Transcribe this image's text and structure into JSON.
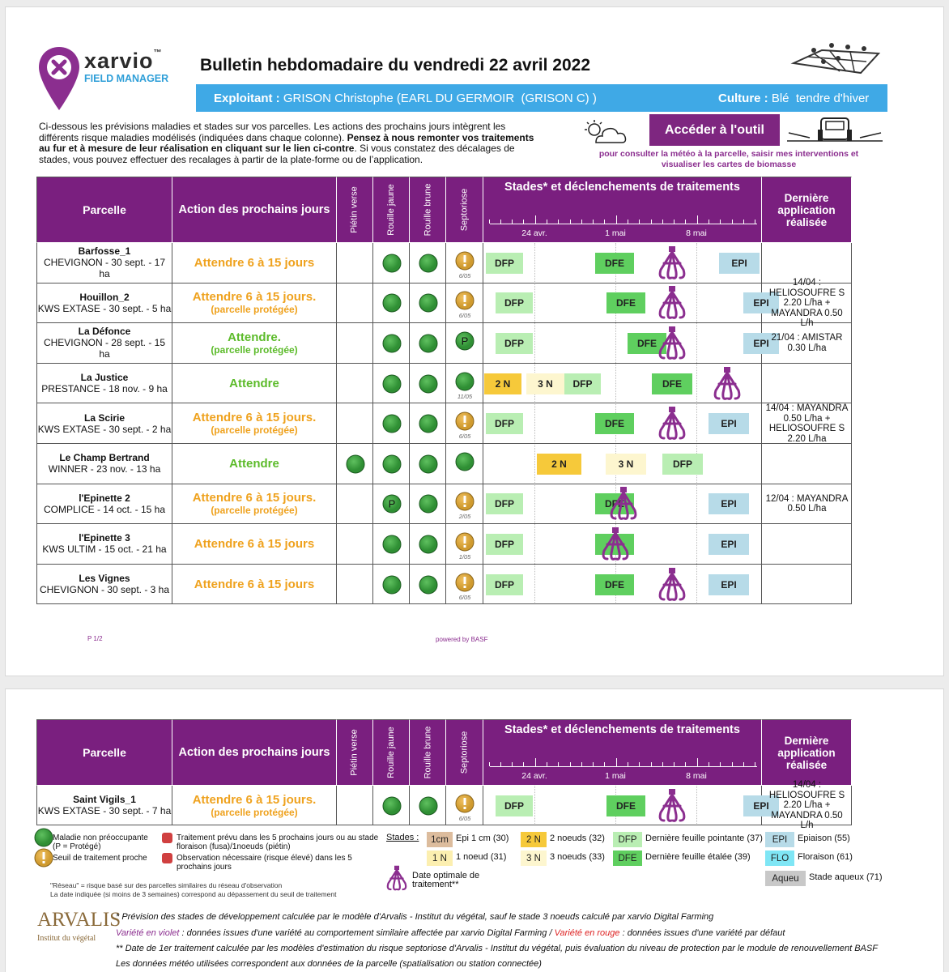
{
  "header": {
    "brand": "xarvio",
    "tm": "™",
    "product": "FIELD MANAGER",
    "title": "Bulletin hebdomadaire du vendredi 22 avril 2022"
  },
  "info": {
    "farmer_label": "Exploitant :",
    "farmer": "GRISON Christophe (EARL DU GERMOIR  (GRISON C) )",
    "crop_label": "Culture :",
    "crop": "Blé  tendre d'hiver"
  },
  "intro": {
    "text1": "Ci-dessous les prévisions maladies et stades sur vos parcelles. Les actions des prochains jours intègrent les différents risque maladies modélisés (indiquées dans chaque colonne). ",
    "bold": "Pensez à nous remonter vos traitements au fur et à mesure de leur réalisation en cliquant sur le lien ci-contre",
    "text2": ".  Si vous constatez des décalages de stades, vous pouvez effectuer des recalages à partir de la plate-forme ou de l’application."
  },
  "tool": {
    "button": "Accéder à l'outil",
    "caption": "pour consulter la météo à la parcelle, saisir mes interventions et visualiser les cartes de biomasse"
  },
  "columns": {
    "parcelle": "Parcelle",
    "action": "Action des prochains jours",
    "diseases": [
      "Piétin verse",
      "Rouille jaune",
      "Rouille brune",
      "Septoriose"
    ],
    "stages": "Stades* et déclenchements de traitements",
    "dates": [
      "24 avr.",
      "1 mai",
      "8 mai"
    ],
    "last": "Dernière application réalisée"
  },
  "rows": [
    {
      "name": "Barfosse_1",
      "detail": "CHEVIGNON - 30 sept. - 17 ha",
      "action": "Attendre 6 à 15 jours",
      "date": "6/05",
      "stages": [
        "DFP",
        "DFE",
        "EPI"
      ]
    },
    {
      "name": "Houillon_2",
      "detail": "KWS EXTASE - 30 sept. - 5 ha",
      "action": "Attendre 6 à 15 jours.",
      "note": "(parcelle protégée)",
      "date": "6/05",
      "stages": [
        "DFP",
        "DFE",
        "EPI"
      ],
      "last": "14/04 : HELIOSOUFRE S 2.20 L/ha  + MAYANDRA 0.50 L/h"
    },
    {
      "name": "La Défonce",
      "detail": "CHEVIGNON - 28 sept. - 15 ha",
      "action": "Attendre.",
      "note": "(parcelle protégée)",
      "p": "P",
      "stages": [
        "DFP",
        "DFE",
        "EPI"
      ],
      "last": "21/04 : AMISTAR 0.30 L/ha"
    },
    {
      "name": "La Justice",
      "detail": "PRESTANCE - 18 nov. - 9 ha",
      "action": "Attendre",
      "date": "11/05",
      "stages": [
        "2 N",
        "3 N",
        "DFP",
        "DFE"
      ]
    },
    {
      "name": "La Scirie",
      "detail": "KWS EXTASE - 30 sept. - 2 ha",
      "action": "Attendre 6 à 15 jours.",
      "note": "(parcelle protégée)",
      "date": "6/05",
      "stages": [
        "DFP",
        "DFE",
        "EPI"
      ],
      "last": "14/04 : MAYANDRA 0.50 L/ha  + HELIOSOUFRE S 2.20 L/ha"
    },
    {
      "name": "Le Champ Bertrand",
      "detail": "WINNER - 23 nov. - 13 ha",
      "action": "Attendre",
      "stages": [
        "2 N",
        "3 N",
        "DFP"
      ]
    },
    {
      "name": "l'Epinette 2",
      "detail": "COMPLICE - 14 oct. - 15 ha",
      "action": "Attendre 6 à 15 jours.",
      "note": "(parcelle protégée)",
      "p": "P",
      "date": "2/05",
      "stages": [
        "DFP",
        "DFE",
        "EPI"
      ],
      "last": "12/04 : MAYANDRA 0.50 L/ha"
    },
    {
      "name": "l'Epinette 3",
      "detail": "KWS ULTIM - 15 oct. - 21 ha",
      "action": "Attendre 6 à 15 jours",
      "date": "1/05",
      "stages": [
        "DFP",
        "EPI"
      ]
    },
    {
      "name": "Les Vignes",
      "detail": "CHEVIGNON - 30 sept. - 3 ha",
      "action": "Attendre 6 à 15 jours",
      "date": "6/05",
      "stages": [
        "DFP",
        "DFE",
        "EPI"
      ]
    }
  ],
  "page1_footer": {
    "page": "P 1/2",
    "powered": "powered by BASF"
  },
  "page2_rows": [
    {
      "name": "Saint Vigils_1",
      "detail": "KWS EXTASE - 30 sept. - 7 ha",
      "action": "Attendre 6 à 15 jours.",
      "note": "(parcelle protégée)",
      "date": "6/05",
      "stages": [
        "DFP",
        "DFE",
        "EPI"
      ],
      "last": "14/04 : HELIOSOUFRE S 2.20 L/ha  + MAYANDRA 0.50 L/h"
    }
  ],
  "legend": {
    "healthy": [
      "Maladie non préoccupante",
      "(P = Protégé)"
    ],
    "alert": [
      "Seuil de traitement proche"
    ],
    "planned": [
      "Traitement prévu dans les 5 prochains jours ou au stade",
      "floraison (fusa)/1noeuds (piétin)"
    ],
    "observe": [
      "Observation nécessaire (risque élevé) dans les 5",
      "prochains jours"
    ],
    "network": [
      "\"Réseau\" = risque basé sur des parcelles similaires du réseau d'observation",
      "La date indiquée (si moins de 3 semaines) correspond au dépassement du seuil de traitement"
    ],
    "stages_label": "Stades :",
    "stages": [
      {
        "code": "1cm",
        "text": "Epi 1 cm (30)"
      },
      {
        "code": "1 N",
        "text": "1 noeud (31)"
      },
      {
        "code": "2 N",
        "text": "2 noeuds (32)"
      },
      {
        "code": "3 N",
        "text": "3 noeuds (33)"
      },
      {
        "code": "DFP",
        "text": "Dernière feuille pointante (37)"
      },
      {
        "code": "DFE",
        "text": "Dernière feuille étalée (39)"
      },
      {
        "code": "EPI",
        "text": "Epiaison (55)"
      },
      {
        "code": "FLO",
        "text": "Floraison (61)"
      },
      {
        "code": "Aqueu",
        "text": "Stade aqueux (71)"
      }
    ],
    "treatment": [
      "Date optimale de",
      "traitement**"
    ]
  },
  "arvalis": {
    "name": "ARVALIS",
    "sub": "Institut du végétal"
  },
  "footnotes": {
    "line1": "* Prévision des stades de développement calculée par le modèle d'Arvalis - Institut du végétal, sauf le stade 3 noeuds calculé par xarvio Digital Farming",
    "violet": "Variété en violet",
    "violet_text": " : données issues d'une variété au comportement similaire affectée par xarvio Digital Farming / ",
    "red": "Variété en rouge",
    "red_text": " : données issues d'une variété par défaut",
    "line3": "** Date de 1er traitement calculée par les modèles d'estimation du risque septoriose d'Arvalis - Institut du végétal, puis évaluation du niveau de protection par le module de renouvellement BASF",
    "line4": "Les données météo utilisées correspondent aux données de la parcelle (spatialisation ou station connectée)"
  }
}
